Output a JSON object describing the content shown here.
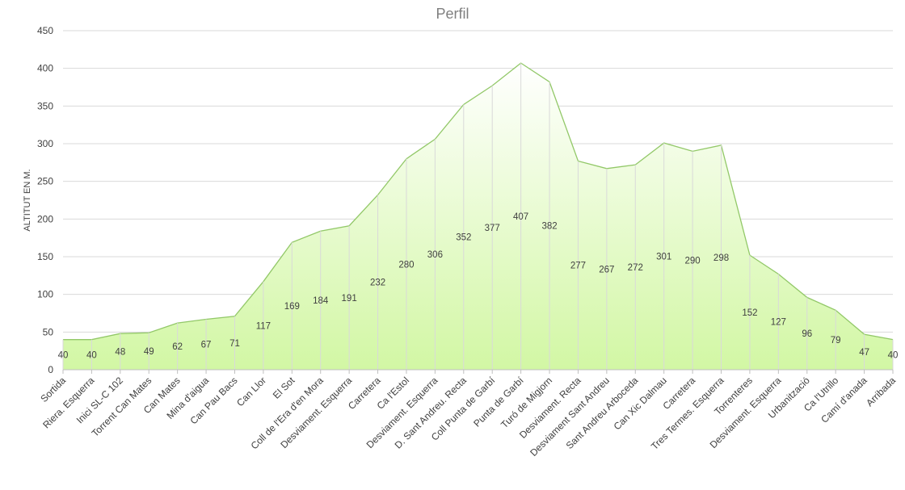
{
  "chart_data": {
    "type": "area",
    "title": "Perfil",
    "xlabel": "",
    "ylabel": "ALTITUT EN M.",
    "ylim": [
      0,
      450
    ],
    "yticks": [
      0,
      50,
      100,
      150,
      200,
      250,
      300,
      350,
      400,
      450
    ],
    "grid": true,
    "legend": "none",
    "categories": [
      "Sortida",
      "Riera. Esquerra",
      "Inici SL-C 102",
      "Torrent Can Mates",
      "Can Mates",
      "Mina d'aigua",
      "Can Pau Bacs",
      "Can Llor",
      "El Sot",
      "Coll de l'Era d'en Mora",
      "Desviament. Esquerra",
      "Carretera",
      "Ca l'Estol",
      "Desviament. Esquerra",
      "D. Sant Andreu. Recta",
      "Coll Punta de Garbí",
      "Punta de Garbí",
      "Turó de Migjorn",
      "Desviament. Recta",
      "Desviament Sant Andreu",
      "Sant Andreu Arboceda",
      "Can Xic Dalmau",
      "Carretera",
      "Tres Termes. Esquerra",
      "Torrenteres",
      "Desviament. Esquerra",
      "Urbanització",
      "Ca l'Utrillo",
      "Camí d'anada",
      "Arribada"
    ],
    "values": [
      40,
      40,
      48,
      49,
      62,
      67,
      71,
      117,
      169,
      184,
      191,
      232,
      280,
      306,
      352,
      377,
      407,
      382,
      277,
      267,
      272,
      301,
      290,
      298,
      152,
      127,
      96,
      79,
      47,
      40
    ],
    "colors": {
      "line": "#92c868",
      "fill_top": "#ffffff",
      "fill_bottom": "#d2f7a4",
      "grid": "#d9d9d9",
      "axis": "#bfbfbf",
      "text": "#404040",
      "title": "#7f7f7f"
    }
  }
}
